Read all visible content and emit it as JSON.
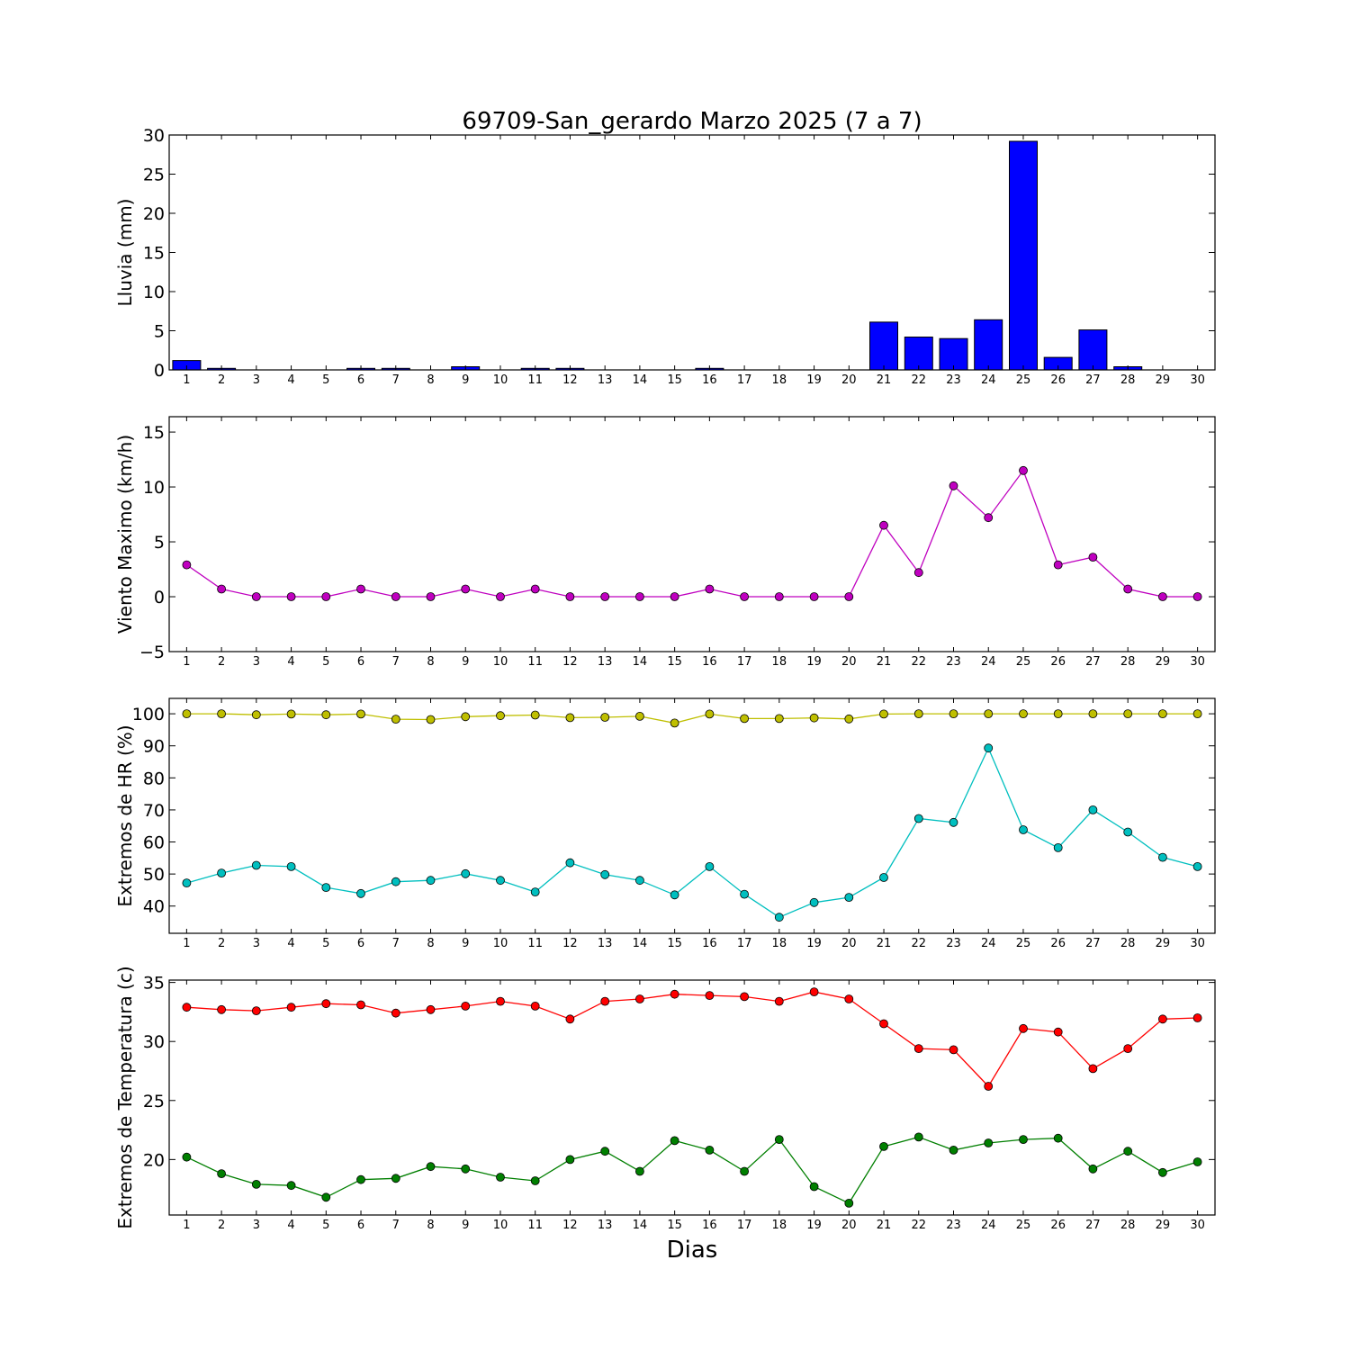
{
  "figure": {
    "title": "69709-San_gerardo Marzo 2025  (7 a 7)",
    "xlabel": "Dias"
  },
  "chart_data": [
    {
      "type": "bar",
      "ylabel": "Lluvia (mm)",
      "ylim": [
        0,
        30
      ],
      "yticks": [
        0,
        5,
        10,
        15,
        20,
        25,
        30
      ],
      "categories": [
        "1",
        "2",
        "3",
        "4",
        "5",
        "6",
        "7",
        "8",
        "9",
        "10",
        "11",
        "12",
        "13",
        "14",
        "15",
        "16",
        "17",
        "18",
        "19",
        "20",
        "21",
        "22",
        "23",
        "24",
        "25",
        "26",
        "27",
        "28",
        "29",
        "30"
      ],
      "series": [
        {
          "color": "#0000ff",
          "values": [
            1.2,
            0.2,
            0,
            0,
            0,
            0.2,
            0.2,
            0,
            0.4,
            0,
            0.2,
            0.2,
            0,
            0,
            0,
            0.2,
            0,
            0,
            0,
            0,
            6.1,
            4.2,
            4.0,
            6.4,
            29.2,
            1.6,
            5.1,
            0.4,
            0,
            0
          ]
        }
      ]
    },
    {
      "type": "line",
      "ylabel": "Viento Maximo (km/h)",
      "ylim": [
        -5,
        16.4
      ],
      "yticks": [
        -5,
        0,
        5,
        10,
        15
      ],
      "ytick_labels": [
        "−5",
        "0",
        "5",
        "10",
        "15"
      ],
      "categories": [
        "1",
        "2",
        "3",
        "4",
        "5",
        "6",
        "7",
        "8",
        "9",
        "10",
        "11",
        "12",
        "13",
        "14",
        "15",
        "16",
        "17",
        "18",
        "19",
        "20",
        "21",
        "22",
        "23",
        "24",
        "25",
        "26",
        "27",
        "28",
        "29",
        "30"
      ],
      "series": [
        {
          "color": "#bf00bf",
          "values": [
            2.9,
            0.7,
            0,
            0,
            0,
            0.7,
            0,
            0,
            0.7,
            0,
            0.7,
            0,
            0,
            0,
            0,
            0.7,
            0,
            0,
            0,
            0,
            6.5,
            2.2,
            10.1,
            7.2,
            11.5,
            2.9,
            3.6,
            0.7,
            0,
            0
          ]
        }
      ]
    },
    {
      "type": "line",
      "ylabel": "Extremos de HR (%)",
      "ylim": [
        31.5,
        104.8
      ],
      "yticks": [
        40,
        50,
        60,
        70,
        80,
        90,
        100
      ],
      "categories": [
        "1",
        "2",
        "3",
        "4",
        "5",
        "6",
        "7",
        "8",
        "9",
        "10",
        "11",
        "12",
        "13",
        "14",
        "15",
        "16",
        "17",
        "18",
        "19",
        "20",
        "21",
        "22",
        "23",
        "24",
        "25",
        "26",
        "27",
        "28",
        "29",
        "30"
      ],
      "series": [
        {
          "color": "#bfbf00",
          "values": [
            100,
            100,
            99.7,
            99.9,
            99.7,
            99.9,
            98.3,
            98.2,
            99.1,
            99.4,
            99.6,
            98.8,
            98.9,
            99.2,
            97.1,
            99.9,
            98.5,
            98.5,
            98.7,
            98.4,
            99.9,
            100,
            100,
            100,
            100,
            100,
            100,
            100,
            100,
            100
          ]
        },
        {
          "color": "#00bfbf",
          "values": [
            47.2,
            50.3,
            52.7,
            52.3,
            45.8,
            43.9,
            47.6,
            48.0,
            50.1,
            48.0,
            44.4,
            53.5,
            49.8,
            48.0,
            43.5,
            52.3,
            43.7,
            36.5,
            41.1,
            42.7,
            48.9,
            67.3,
            66.1,
            89.3,
            63.8,
            58.2,
            70.0,
            63.1,
            55.2,
            52.3
          ]
        }
      ]
    },
    {
      "type": "line",
      "ylabel": "Extremos de Temperatura (c)",
      "ylim": [
        15.3,
        35.2
      ],
      "yticks": [
        20,
        25,
        30,
        35
      ],
      "categories": [
        "1",
        "2",
        "3",
        "4",
        "5",
        "6",
        "7",
        "8",
        "9",
        "10",
        "11",
        "12",
        "13",
        "14",
        "15",
        "16",
        "17",
        "18",
        "19",
        "20",
        "21",
        "22",
        "23",
        "24",
        "25",
        "26",
        "27",
        "28",
        "29",
        "30"
      ],
      "series": [
        {
          "color": "#ff0000",
          "values": [
            32.9,
            32.7,
            32.6,
            32.9,
            33.2,
            33.1,
            32.4,
            32.7,
            33.0,
            33.4,
            33.0,
            31.9,
            33.4,
            33.6,
            34.0,
            33.9,
            33.8,
            33.4,
            34.2,
            33.6,
            31.5,
            29.4,
            29.3,
            26.2,
            31.1,
            30.8,
            27.7,
            29.4,
            31.9,
            32.0
          ]
        },
        {
          "color": "#007f00",
          "values": [
            20.2,
            18.8,
            17.9,
            17.8,
            16.8,
            18.3,
            18.4,
            19.4,
            19.2,
            18.5,
            18.2,
            20.0,
            20.7,
            19.0,
            21.6,
            20.8,
            19.0,
            21.7,
            17.7,
            16.3,
            21.1,
            21.9,
            20.8,
            21.4,
            21.7,
            21.8,
            19.2,
            20.7,
            18.9,
            19.8
          ]
        }
      ]
    }
  ]
}
